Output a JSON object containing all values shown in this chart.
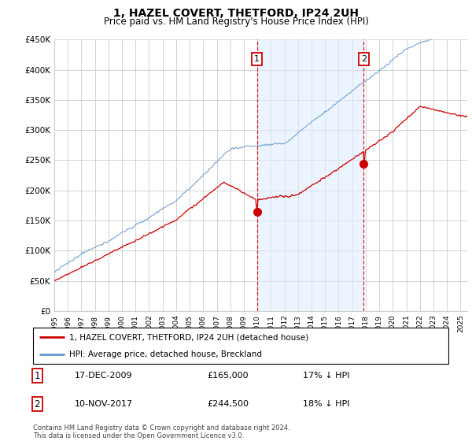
{
  "title": "1, HAZEL COVERT, THETFORD, IP24 2UH",
  "subtitle": "Price paid vs. HM Land Registry's House Price Index (HPI)",
  "ylim": [
    0,
    450000
  ],
  "yticks": [
    0,
    50000,
    100000,
    150000,
    200000,
    250000,
    300000,
    350000,
    400000,
    450000
  ],
  "ytick_labels": [
    "£0",
    "£50K",
    "£100K",
    "£150K",
    "£200K",
    "£250K",
    "£300K",
    "£350K",
    "£400K",
    "£450K"
  ],
  "sale1_date_label": "17-DEC-2009",
  "sale1_price": 165000,
  "sale1_price_label": "£165,000",
  "sale1_hpi_label": "17% ↓ HPI",
  "sale1_year": 2009.96,
  "sale2_date_label": "10-NOV-2017",
  "sale2_price": 244500,
  "sale2_price_label": "£244,500",
  "sale2_hpi_label": "18% ↓ HPI",
  "sale2_year": 2017.86,
  "legend_line1": "1, HAZEL COVERT, THETFORD, IP24 2UH (detached house)",
  "legend_line2": "HPI: Average price, detached house, Breckland",
  "footer": "Contains HM Land Registry data © Crown copyright and database right 2024.\nThis data is licensed under the Open Government Licence v3.0.",
  "line_color_red": "#cc0000",
  "line_color_blue": "#6699cc",
  "shade_color": "#ddeeff",
  "dashed_color": "#cc0000",
  "grid_color": "#cccccc"
}
